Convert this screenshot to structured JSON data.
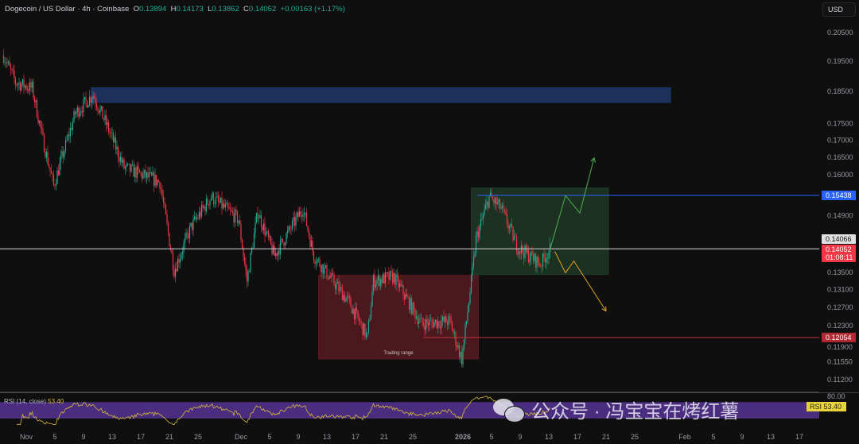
{
  "header": {
    "symbol": "Dogecoin / US Dollar · 4h · Coinbase",
    "open_label": "O",
    "open": "0.13894",
    "high_label": "H",
    "high": "0.14173",
    "low_label": "L",
    "low": "0.13862",
    "close_label": "C",
    "close": "0.14052",
    "change": "+0.00163 (+1.17%)",
    "currency": "USD"
  },
  "colors": {
    "up": "#22ab94",
    "down": "#f23645",
    "background": "#0f0f0f",
    "rsi_line": "#d4b83a",
    "rsi_band": "#4b2d7f"
  },
  "chart_data": {
    "type": "candlestick",
    "timeframe": "4h",
    "y_scale": "log",
    "price_ticks": [
      "0.20500",
      "0.19500",
      "0.18500",
      "0.17500",
      "0.17000",
      "0.16500",
      "0.16000",
      "0.14900",
      "0.13500",
      "0.13100",
      "0.12700",
      "0.12300",
      "0.11900",
      "0.11550",
      "0.11200"
    ],
    "price_labels": [
      {
        "text": "0.15438",
        "price": 0.15438,
        "color": "#2962ff"
      },
      {
        "text": "0.14066",
        "price": 0.14066,
        "color": "#e0e0e0"
      },
      {
        "text": "0.14052",
        "sub": "01:08:11",
        "price": 0.14052,
        "color": "#f23645"
      },
      {
        "text": "0.12054",
        "price": 0.12054,
        "color": "#b22833"
      }
    ],
    "x_ticks": [
      {
        "label": "Nov",
        "date": "2025-11-01"
      },
      {
        "label": "5",
        "date": "2025-11-05"
      },
      {
        "label": "9",
        "date": "2025-11-09"
      },
      {
        "label": "13",
        "date": "2025-11-13"
      },
      {
        "label": "17",
        "date": "2025-11-17"
      },
      {
        "label": "21",
        "date": "2025-11-21"
      },
      {
        "label": "25",
        "date": "2025-11-25"
      },
      {
        "label": "Dec",
        "date": "2025-12-01"
      },
      {
        "label": "5",
        "date": "2025-12-05"
      },
      {
        "label": "9",
        "date": "2025-12-09"
      },
      {
        "label": "13",
        "date": "2025-12-13"
      },
      {
        "label": "17",
        "date": "2025-12-17"
      },
      {
        "label": "21",
        "date": "2025-12-21"
      },
      {
        "label": "25",
        "date": "2025-12-25"
      },
      {
        "label": "2026",
        "date": "2026-01-01"
      },
      {
        "label": "5",
        "date": "2026-01-05"
      },
      {
        "label": "9",
        "date": "2026-01-09"
      },
      {
        "label": "13",
        "date": "2026-01-13"
      },
      {
        "label": "17",
        "date": "2026-01-17"
      },
      {
        "label": "21",
        "date": "2026-01-21"
      },
      {
        "label": "25",
        "date": "2026-01-25"
      },
      {
        "label": "Feb",
        "date": "2026-02-01"
      },
      {
        "label": "5",
        "date": "2026-02-05"
      },
      {
        "label": "9",
        "date": "2026-02-09"
      },
      {
        "label": "13",
        "date": "2026-02-13"
      },
      {
        "label": "17",
        "date": "2026-02-17"
      }
    ],
    "price_path": [
      [
        "2025-10-28T20:00",
        0.197
      ],
      [
        "2025-10-30T12:00",
        0.188
      ],
      [
        "2025-11-01T20:00",
        0.186
      ],
      [
        "2025-11-03T08:00",
        0.17
      ],
      [
        "2025-11-04T20:00",
        0.157
      ],
      [
        "2025-11-07T20:00",
        0.178
      ],
      [
        "2025-11-10T08:00",
        0.184
      ],
      [
        "2025-11-12T08:00",
        0.174
      ],
      [
        "2025-11-14T16:00",
        0.162
      ],
      [
        "2025-11-19T16:00",
        0.158
      ],
      [
        "2025-11-21T16:00",
        0.1355
      ],
      [
        "2025-11-24T00:00",
        0.146
      ],
      [
        "2025-11-26T20:00",
        0.154
      ],
      [
        "2025-11-30T16:00",
        0.148
      ],
      [
        "2025-12-01T20:00",
        0.133
      ],
      [
        "2025-12-03T08:00",
        0.15
      ],
      [
        "2025-12-05T16:00",
        0.139
      ],
      [
        "2025-12-09T16:00",
        0.151
      ],
      [
        "2025-12-11T04:00",
        0.139
      ],
      [
        "2025-12-16T04:00",
        0.128
      ],
      [
        "2025-12-18T16:00",
        0.1205
      ],
      [
        "2025-12-19T12:00",
        0.133
      ],
      [
        "2025-12-22T08:00",
        0.134
      ],
      [
        "2025-12-26T04:00",
        0.1235
      ],
      [
        "2025-12-30T04:00",
        0.124
      ],
      [
        "2025-12-31T20:00",
        0.116
      ],
      [
        "2026-01-02T08:00",
        0.135
      ],
      [
        "2026-01-02T20:00",
        0.143
      ],
      [
        "2026-01-04T16:00",
        0.154
      ],
      [
        "2026-01-06T08:00",
        0.151
      ],
      [
        "2026-01-08T16:00",
        0.141
      ],
      [
        "2026-01-11T20:00",
        0.137
      ],
      [
        "2026-01-13T04:00",
        0.14052
      ]
    ],
    "zones": [
      {
        "name": "supply-zone",
        "from": "2025-11-10T02:00",
        "to": "2026-01-30T00:00",
        "top": 0.1862,
        "bottom": 0.1815,
        "color": "#1e3a6e"
      },
      {
        "name": "trading-range-zone",
        "label": "Trading range",
        "from": "2025-12-11T20:00",
        "to": "2026-01-03T04:00",
        "top": 0.1343,
        "bottom": 0.1161,
        "color": "#5a1a22"
      },
      {
        "name": "projection-zone",
        "from": "2026-01-02T04:00",
        "to": "2026-01-21T08:00",
        "top": 0.1564,
        "bottom": 0.1345,
        "color": "#1f3a25"
      }
    ],
    "lines": [
      {
        "name": "current-price-line",
        "price": 0.14066,
        "from": "2025-10-28T00:00",
        "color": "#d8d8d8"
      },
      {
        "name": "resistance-line",
        "price": 0.15438,
        "from": "2026-01-03T00:00",
        "color": "#2962ff"
      },
      {
        "name": "support-line",
        "price": 0.12054,
        "from": "2025-12-26T12:00",
        "color": "#c2303c"
      }
    ],
    "arrows": [
      {
        "name": "bullish-path-arrow",
        "color": "#4caf50",
        "points": [
          [
            "2026-01-13T04:00",
            0.1405
          ],
          [
            "2026-01-15T08:00",
            0.1543
          ],
          [
            "2026-01-17T08:00",
            0.1497
          ],
          [
            "2026-01-19T08:00",
            0.1648
          ]
        ]
      },
      {
        "name": "bearish-path-arrow",
        "color": "#e0a020",
        "points": [
          [
            "2026-01-13T20:00",
            0.14
          ],
          [
            "2026-01-15T08:00",
            0.1349
          ],
          [
            "2026-01-16T12:00",
            0.1377
          ],
          [
            "2026-01-21T00:00",
            0.1262
          ]
        ]
      }
    ],
    "rsi": {
      "label": "RSI (14, close)",
      "value": "53.40",
      "upper_tick": "80.00",
      "band": [
        30,
        70
      ]
    }
  },
  "watermark": "公众号 · 冯宝宝在烤红薯"
}
